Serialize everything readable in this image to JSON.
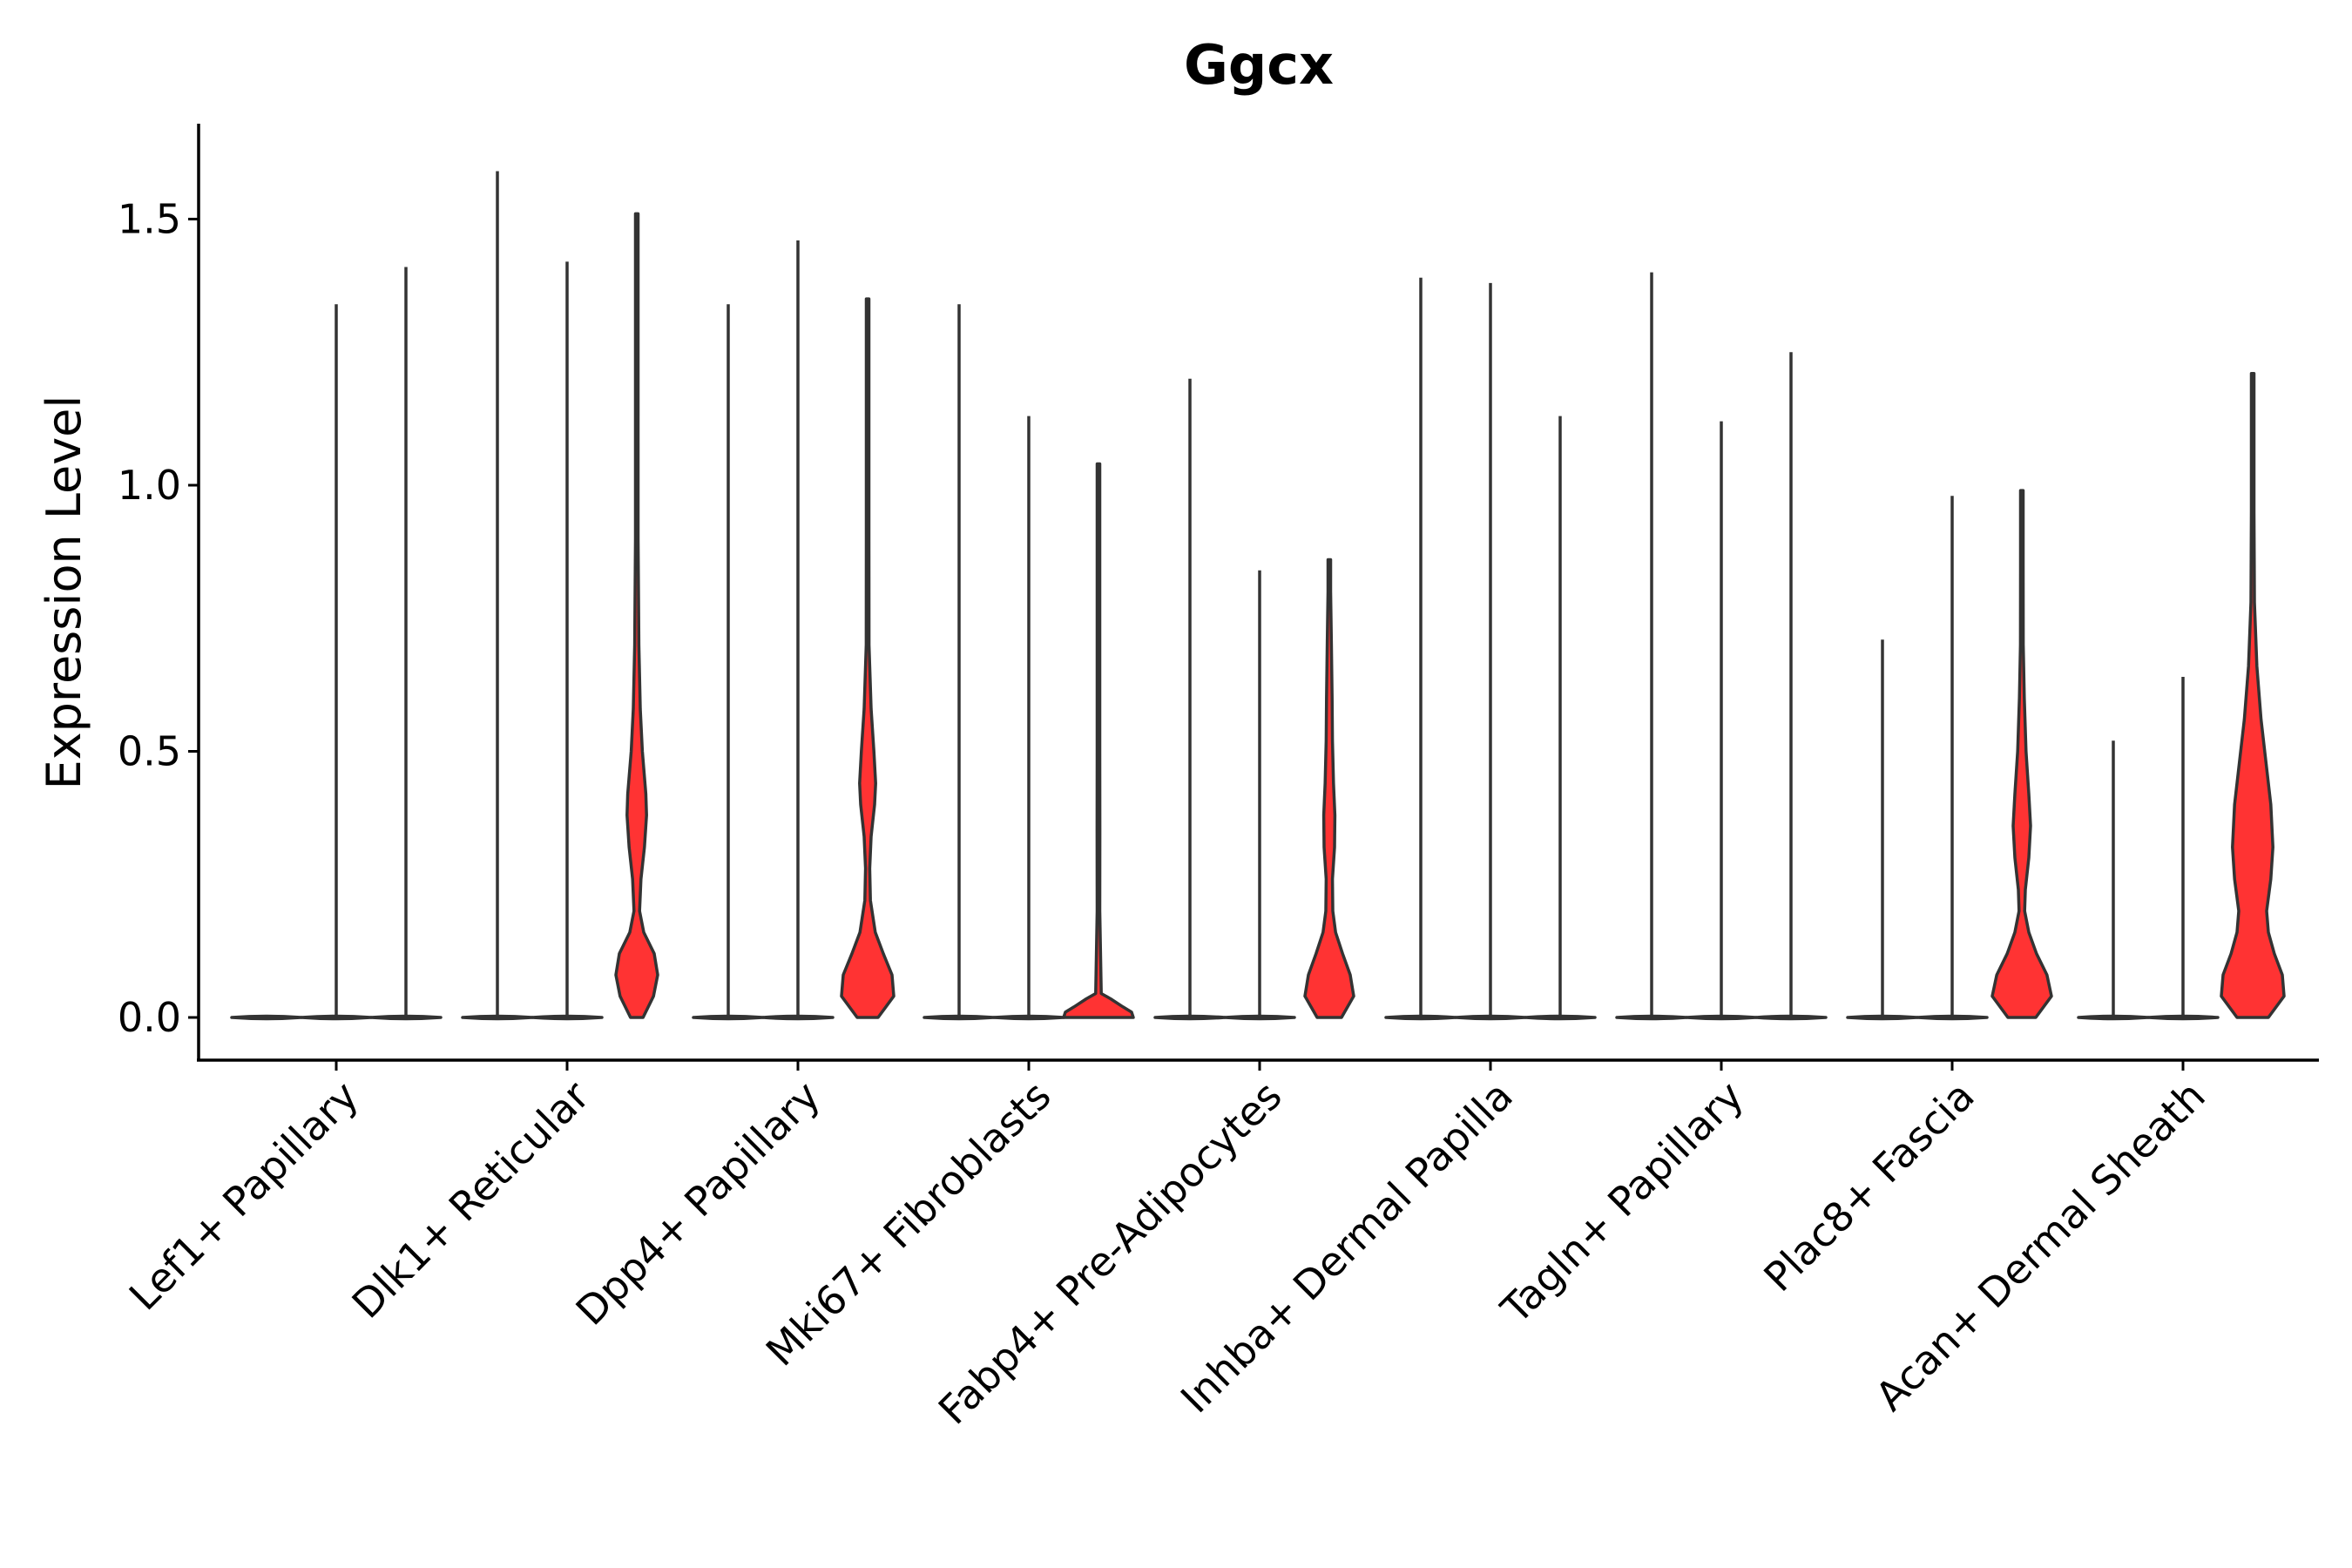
{
  "chart_data": {
    "type": "violin",
    "title": "Ggcx",
    "xlabel": "",
    "ylabel": "Expression Level",
    "ylim": [
      -0.08,
      1.68
    ],
    "yticks": [
      0.0,
      0.5,
      1.0,
      1.5
    ],
    "ytick_labels": [
      "0.0",
      "0.5",
      "1.0",
      "1.5"
    ],
    "categories": [
      "Lef1+ Papillary",
      "Dlk1+ Reticular",
      "Dpp4+ Papillary",
      "Mki67+ Fibroblasts",
      "Fabp4+ Pre-Adipocytes",
      "Inhba+ Dermal Papilla",
      "Tagln+ Papillary",
      "Plac8+ Fascia",
      "Acan+ Dermal Sheath"
    ],
    "groups_per_category": 3,
    "fill_color": "#FF3333",
    "outline_color": "#333333",
    "groups": [
      [
        {
          "max": 0,
          "filled": false
        },
        {
          "max": 1.34,
          "filled": false
        },
        {
          "max": 1.41,
          "filled": false
        }
      ],
      [
        {
          "max": 1.59,
          "filled": false
        },
        {
          "max": 1.42,
          "filled": false
        },
        {
          "max": 1.51,
          "filled": true,
          "profile": [
            [
              0,
              0.18
            ],
            [
              0.04,
              0.48
            ],
            [
              0.08,
              0.6
            ],
            [
              0.12,
              0.5
            ],
            [
              0.16,
              0.2
            ],
            [
              0.2,
              0.08
            ],
            [
              0.26,
              0.12
            ],
            [
              0.32,
              0.22
            ],
            [
              0.38,
              0.28
            ],
            [
              0.42,
              0.26
            ],
            [
              0.5,
              0.16
            ],
            [
              0.58,
              0.1
            ],
            [
              0.7,
              0.06
            ],
            [
              0.9,
              0.03
            ],
            [
              1.2,
              0.012
            ],
            [
              1.51,
              0
            ]
          ]
        }
      ],
      [
        {
          "max": 1.34,
          "filled": false
        },
        {
          "max": 1.46,
          "filled": false
        },
        {
          "max": 1.35,
          "filled": true,
          "profile": [
            [
              0,
              0.3
            ],
            [
              0.04,
              0.75
            ],
            [
              0.08,
              0.7
            ],
            [
              0.12,
              0.45
            ],
            [
              0.16,
              0.22
            ],
            [
              0.22,
              0.08
            ],
            [
              0.28,
              0.06
            ],
            [
              0.34,
              0.1
            ],
            [
              0.4,
              0.2
            ],
            [
              0.44,
              0.23
            ],
            [
              0.5,
              0.18
            ],
            [
              0.58,
              0.1
            ],
            [
              0.7,
              0.04
            ],
            [
              0.9,
              0.02
            ],
            [
              1.1,
              0.01
            ],
            [
              1.35,
              0
            ]
          ]
        }
      ],
      [
        {
          "max": 1.34,
          "filled": false
        },
        {
          "max": 1.13,
          "filled": false
        },
        {
          "max": 1.04,
          "filled": true,
          "profile": [
            [
              0,
              1
            ],
            [
              0.01,
              0.95
            ],
            [
              0.02,
              0.7
            ],
            [
              0.035,
              0.35
            ],
            [
              0.045,
              0.08
            ],
            [
              0.2,
              0.03
            ],
            [
              0.35,
              0.04
            ],
            [
              0.5,
              0.02
            ],
            [
              0.7,
              0.01
            ],
            [
              1.04,
              0
            ]
          ]
        }
      ],
      [
        {
          "max": 1.2,
          "filled": false
        },
        {
          "max": 0.84,
          "filled": false
        },
        {
          "max": 0.86,
          "filled": true,
          "profile": [
            [
              0,
              0.35
            ],
            [
              0.04,
              0.7
            ],
            [
              0.08,
              0.6
            ],
            [
              0.12,
              0.38
            ],
            [
              0.16,
              0.18
            ],
            [
              0.2,
              0.1
            ],
            [
              0.26,
              0.09
            ],
            [
              0.32,
              0.15
            ],
            [
              0.38,
              0.16
            ],
            [
              0.44,
              0.12
            ],
            [
              0.52,
              0.09
            ],
            [
              0.6,
              0.08
            ],
            [
              0.7,
              0.06
            ],
            [
              0.8,
              0.03
            ],
            [
              0.86,
              0
            ]
          ]
        }
      ],
      [
        {
          "max": 1.39,
          "filled": false
        },
        {
          "max": 1.38,
          "filled": false
        },
        {
          "max": 1.13,
          "filled": false
        }
      ],
      [
        {
          "max": 1.4,
          "filled": false
        },
        {
          "max": 1.12,
          "filled": false
        },
        {
          "max": 1.25,
          "filled": false
        }
      ],
      [
        {
          "max": 0.71,
          "filled": false
        },
        {
          "max": 0.98,
          "filled": false
        },
        {
          "max": 0.99,
          "filled": true,
          "profile": [
            [
              0,
              0.4
            ],
            [
              0.04,
              0.85
            ],
            [
              0.08,
              0.72
            ],
            [
              0.12,
              0.42
            ],
            [
              0.16,
              0.2
            ],
            [
              0.2,
              0.08
            ],
            [
              0.24,
              0.1
            ],
            [
              0.3,
              0.2
            ],
            [
              0.36,
              0.25
            ],
            [
              0.42,
              0.2
            ],
            [
              0.5,
              0.12
            ],
            [
              0.6,
              0.07
            ],
            [
              0.7,
              0.04
            ],
            [
              0.85,
              0.02
            ],
            [
              0.99,
              0
            ]
          ]
        }
      ],
      [
        {
          "max": 0.52,
          "filled": false
        },
        {
          "max": 0.64,
          "filled": false
        },
        {
          "max": 1.21,
          "filled": true,
          "profile": [
            [
              0,
              0.45
            ],
            [
              0.04,
              0.9
            ],
            [
              0.08,
              0.85
            ],
            [
              0.12,
              0.62
            ],
            [
              0.16,
              0.45
            ],
            [
              0.2,
              0.4
            ],
            [
              0.26,
              0.52
            ],
            [
              0.32,
              0.58
            ],
            [
              0.4,
              0.52
            ],
            [
              0.48,
              0.38
            ],
            [
              0.56,
              0.24
            ],
            [
              0.66,
              0.12
            ],
            [
              0.78,
              0.05
            ],
            [
              0.95,
              0.02
            ],
            [
              1.21,
              0
            ]
          ]
        }
      ]
    ]
  }
}
